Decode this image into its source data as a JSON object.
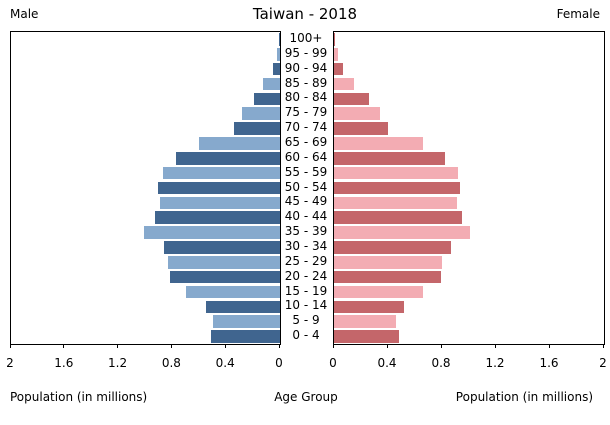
{
  "title": "Taiwan - 2018",
  "headers": {
    "left": "Male",
    "right": "Female"
  },
  "axis": {
    "left_caption": "Population (in millions)",
    "center_caption": "Age Group",
    "right_caption": "Population (in millions)"
  },
  "colors": {
    "male_dark": "#40658F",
    "male_light": "#86A9CD",
    "female_dark": "#C4666A",
    "female_light": "#F3ACB3",
    "axis_line": "#000000",
    "background": "#FFFFFF"
  },
  "chart_data": {
    "type": "bar",
    "subtype": "population_pyramid",
    "title": "Taiwan - 2018",
    "xlabel": "Population (in millions)",
    "center_label": "Age Group",
    "xlim": [
      0,
      2
    ],
    "xticks": [
      0,
      0.4,
      0.8,
      1.2,
      1.6,
      2
    ],
    "grid": false,
    "legend": "none",
    "age_groups_top_to_bottom": [
      "100+",
      "95 - 99",
      "90 - 94",
      "85 - 89",
      "80 - 84",
      "75 - 79",
      "70 - 74",
      "65 - 69",
      "60 - 64",
      "55 - 59",
      "50 - 54",
      "45 - 49",
      "40 - 44",
      "35 - 39",
      "30 - 34",
      "25 - 29",
      "20 - 24",
      "15 - 19",
      "10 - 14",
      "5 - 9",
      "0 - 4"
    ],
    "series": [
      {
        "name": "Male",
        "side": "left",
        "values_millions": [
          0.005,
          0.02,
          0.05,
          0.13,
          0.19,
          0.28,
          0.34,
          0.6,
          0.77,
          0.87,
          0.91,
          0.89,
          0.93,
          1.01,
          0.86,
          0.83,
          0.82,
          0.7,
          0.55,
          0.5,
          0.51
        ]
      },
      {
        "name": "Female",
        "side": "right",
        "values_millions": [
          0.01,
          0.03,
          0.07,
          0.15,
          0.26,
          0.34,
          0.4,
          0.66,
          0.82,
          0.92,
          0.93,
          0.91,
          0.95,
          1.01,
          0.87,
          0.8,
          0.79,
          0.66,
          0.52,
          0.46,
          0.48
        ]
      }
    ],
    "color_pattern": "bottom row (0 - 4) dark, alternating light/dark upward; male blues on left, female reds on right"
  }
}
